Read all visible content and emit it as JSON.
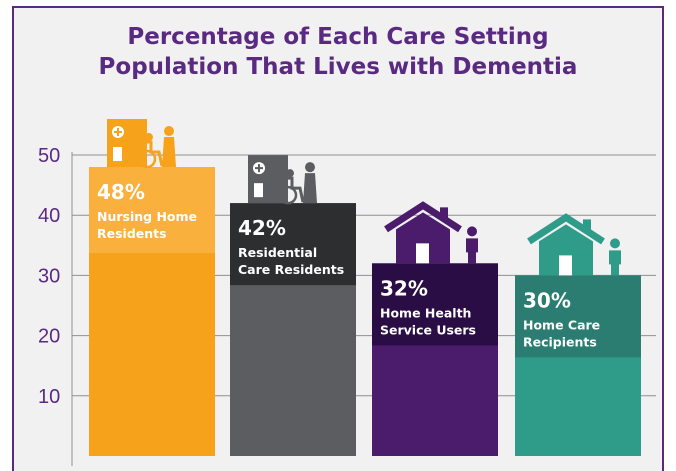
{
  "chart_data": {
    "type": "bar",
    "title": [
      "Percentage of Each Care Setting",
      "Population That Lives with Dementia"
    ],
    "categories": [
      "Nursing Home Residents",
      "Residential Care Residents",
      "Home Health Service Users",
      "Home Care Recipients"
    ],
    "values": [
      48,
      42,
      32,
      30
    ],
    "value_labels": [
      "48%",
      "42%",
      "32%",
      "30%"
    ],
    "bar_labels": [
      [
        "Nursing Home",
        "Residents"
      ],
      [
        "Residential",
        "Care Residents"
      ],
      [
        "Home Health",
        "Service Users"
      ],
      [
        "Home Care",
        "Recipients"
      ]
    ],
    "icons": [
      "hospital-caregiver-icon",
      "hospital-caregiver-icon",
      "house-person-icon",
      "house-person-icon"
    ],
    "colors": {
      "bars": [
        "#f7a21b",
        "#5b5d60",
        "#4b1c6b",
        "#2f9c8a"
      ],
      "label_blocks": [
        "#f7a21b",
        "#2d2e30",
        "#2a0d44",
        "#2a7d70"
      ],
      "icons": [
        "#f7a21b",
        "#5b5d60",
        "#4b1c6b",
        "#2f9c8a"
      ],
      "title": "#5a2a82",
      "axis": "#5a2a82",
      "background": "#f1f1f2"
    },
    "yticks": [
      10,
      20,
      30,
      40,
      50
    ],
    "ylim": [
      0,
      50
    ],
    "grid": true,
    "xlabel": "",
    "ylabel": ""
  }
}
